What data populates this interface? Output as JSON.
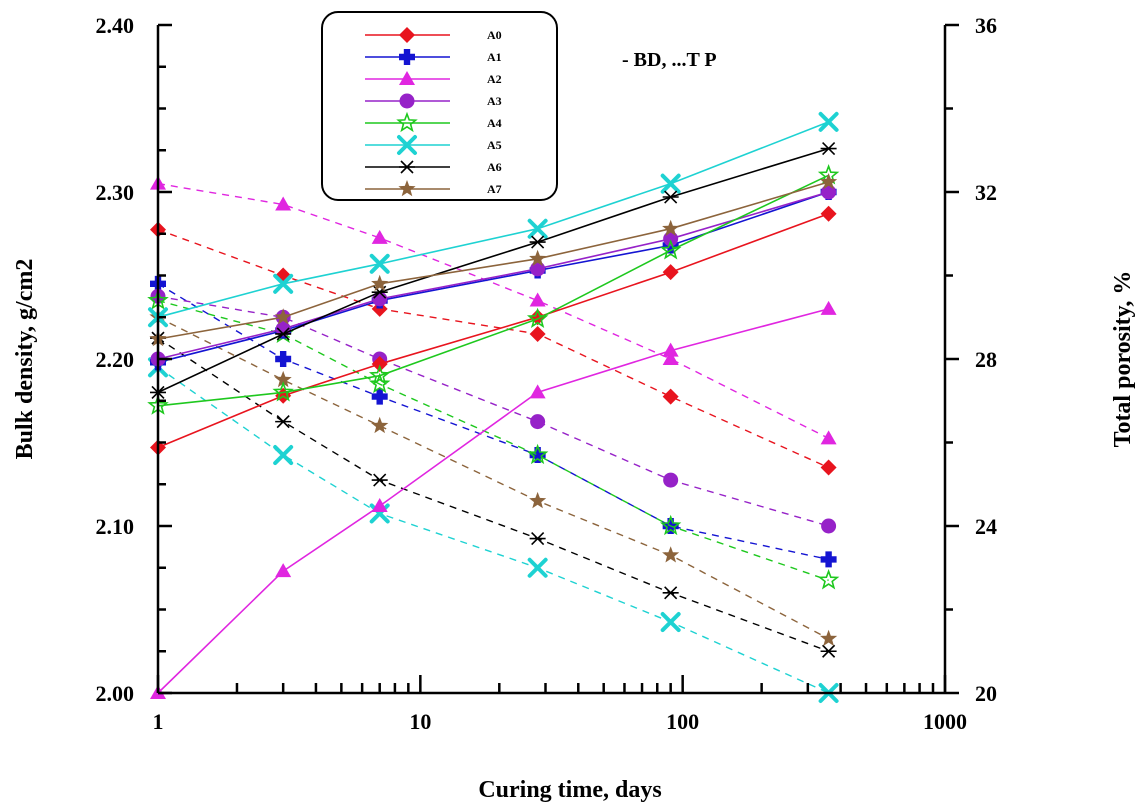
{
  "chart_data": {
    "type": "line",
    "xlabel": "Curing time, days",
    "ylabel": "Bulk density, g/cm2",
    "y2label": "Total porosity, %",
    "annotation": "- BD, ...T P",
    "x_scale": "log",
    "xlim": [
      1,
      1000
    ],
    "ylim": [
      2.0,
      2.4
    ],
    "y2lim": [
      20,
      36
    ],
    "grid": false,
    "legend_position": "top-left inside",
    "x_ticks": [
      "1",
      "10",
      "100",
      "1000"
    ],
    "y_ticks": [
      "2.00",
      "2.10",
      "2.20",
      "2.30",
      "2.40"
    ],
    "y2_ticks": [
      "20",
      "24",
      "28",
      "32",
      "36"
    ],
    "x": [
      1,
      3,
      7,
      28,
      90,
      360
    ],
    "series": [
      {
        "name": "A0",
        "color": "#e8141e",
        "marker": "diamond",
        "bd": [
          2.147,
          2.178,
          2.197,
          2.225,
          2.252,
          2.287
        ],
        "tp": [
          31.1,
          30.0,
          29.2,
          28.6,
          27.1,
          25.4
        ]
      },
      {
        "name": "A1",
        "color": "#1414d2",
        "marker": "plus",
        "bd": [
          2.198,
          2.217,
          2.235,
          2.253,
          2.268,
          2.3
        ],
        "tp": [
          29.8,
          28.0,
          27.1,
          25.7,
          24.0,
          23.2
        ]
      },
      {
        "name": "A2",
        "color": "#e026e0",
        "marker": "triangle",
        "bd": [
          2.0,
          2.073,
          2.112,
          2.18,
          2.205,
          2.23
        ],
        "tp": [
          32.2,
          31.7,
          30.9,
          29.4,
          28.0,
          26.1
        ]
      },
      {
        "name": "A3",
        "color": "#9622c8",
        "marker": "circle",
        "bd": [
          2.2,
          2.218,
          2.236,
          2.254,
          2.272,
          2.3
        ],
        "tp": [
          29.5,
          29.0,
          28.0,
          26.5,
          25.1,
          24.0
        ]
      },
      {
        "name": "A4",
        "color": "#1ec81e",
        "marker": "star-open",
        "bd": [
          2.172,
          2.18,
          2.19,
          2.224,
          2.265,
          2.31
        ],
        "tp": [
          29.4,
          28.6,
          27.4,
          25.7,
          24.0,
          22.7
        ]
      },
      {
        "name": "A5",
        "color": "#1ed2d2",
        "marker": "cross",
        "bd": [
          2.225,
          2.245,
          2.257,
          2.278,
          2.305,
          2.342
        ],
        "tp": [
          27.8,
          25.7,
          24.3,
          23.0,
          21.7,
          20.0
        ]
      },
      {
        "name": "A6",
        "color": "#000000",
        "marker": "asterisk",
        "bd": [
          2.18,
          2.215,
          2.24,
          2.27,
          2.297,
          2.326
        ],
        "tp": [
          28.5,
          26.5,
          25.1,
          23.7,
          22.4,
          21.0
        ]
      },
      {
        "name": "A7",
        "color": "#8c643c",
        "marker": "star-filled",
        "bd": [
          2.212,
          2.225,
          2.245,
          2.26,
          2.278,
          2.306
        ],
        "tp": [
          29.0,
          27.5,
          26.4,
          24.6,
          23.3,
          21.3
        ]
      }
    ]
  }
}
